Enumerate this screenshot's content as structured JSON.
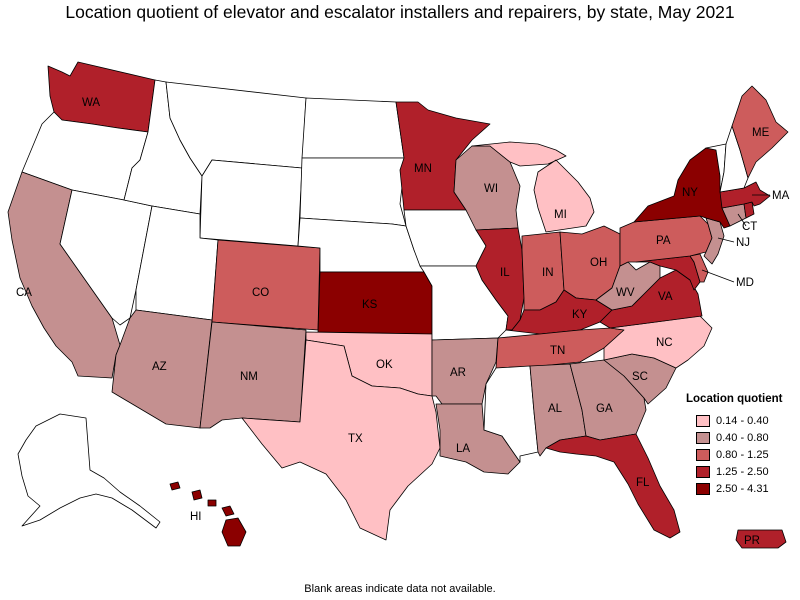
{
  "title": "Location quotient of elevator and escalator installers and repairers, by state, May 2021",
  "footnote": "Blank areas indicate data not available.",
  "legend": {
    "title": "Location quotient",
    "items": [
      {
        "label": "0.14 - 0.40",
        "color": "#ffc0c4"
      },
      {
        "label": "0.40 - 0.80",
        "color": "#c49090"
      },
      {
        "label": "0.80 - 1.25",
        "color": "#cd5c5c"
      },
      {
        "label": "1.25 - 2.50",
        "color": "#b0202a"
      },
      {
        "label": "2.50 - 4.31",
        "color": "#8b0000"
      }
    ]
  },
  "states": {
    "WA": {
      "label": "WA",
      "class": 3
    },
    "OR": {
      "label": "",
      "class": -1
    },
    "CA": {
      "label": "CA",
      "class": 1
    },
    "NV": {
      "label": "",
      "class": -1
    },
    "ID": {
      "label": "",
      "class": -1
    },
    "MT": {
      "label": "",
      "class": -1
    },
    "WY": {
      "label": "",
      "class": -1
    },
    "UT": {
      "label": "",
      "class": -1
    },
    "AZ": {
      "label": "AZ",
      "class": 1
    },
    "CO": {
      "label": "CO",
      "class": 2
    },
    "NM": {
      "label": "NM",
      "class": 1
    },
    "ND": {
      "label": "",
      "class": -1
    },
    "SD": {
      "label": "",
      "class": -1
    },
    "NE": {
      "label": "",
      "class": -1
    },
    "KS": {
      "label": "KS",
      "class": 4
    },
    "OK": {
      "label": "OK",
      "class": 0
    },
    "TX": {
      "label": "TX",
      "class": 0
    },
    "MN": {
      "label": "MN",
      "class": 3
    },
    "IA": {
      "label": "",
      "class": -1
    },
    "MO": {
      "label": "",
      "class": -1
    },
    "AR": {
      "label": "AR",
      "class": 1
    },
    "LA": {
      "label": "LA",
      "class": 1
    },
    "WI": {
      "label": "WI",
      "class": 1
    },
    "IL": {
      "label": "IL",
      "class": 3
    },
    "MI": {
      "label": "MI",
      "class": 0
    },
    "IN": {
      "label": "IN",
      "class": 2
    },
    "OH": {
      "label": "OH",
      "class": 2
    },
    "KY": {
      "label": "KY",
      "class": 3
    },
    "TN": {
      "label": "TN",
      "class": 2
    },
    "MS": {
      "label": "",
      "class": -1
    },
    "AL": {
      "label": "AL",
      "class": 1
    },
    "GA": {
      "label": "GA",
      "class": 1
    },
    "FL": {
      "label": "FL",
      "class": 3
    },
    "SC": {
      "label": "SC",
      "class": 1
    },
    "NC": {
      "label": "NC",
      "class": 0
    },
    "VA": {
      "label": "VA",
      "class": 3
    },
    "WV": {
      "label": "WV",
      "class": 1
    },
    "MD": {
      "label": "MD",
      "class": 3
    },
    "DE": {
      "label": "",
      "class": 2
    },
    "PA": {
      "label": "PA",
      "class": 2
    },
    "NJ": {
      "label": "NJ",
      "class": 1
    },
    "NY": {
      "label": "NY",
      "class": 4
    },
    "CT": {
      "label": "CT",
      "class": 1
    },
    "RI": {
      "label": "",
      "class": 3
    },
    "MA": {
      "label": "MA",
      "class": 3
    },
    "VT": {
      "label": "",
      "class": -1
    },
    "NH": {
      "label": "",
      "class": -1
    },
    "ME": {
      "label": "ME",
      "class": 2
    },
    "AK": {
      "label": "",
      "class": -1
    },
    "HI": {
      "label": "HI",
      "class": 4
    },
    "PR": {
      "label": "PR",
      "class": 3
    }
  }
}
